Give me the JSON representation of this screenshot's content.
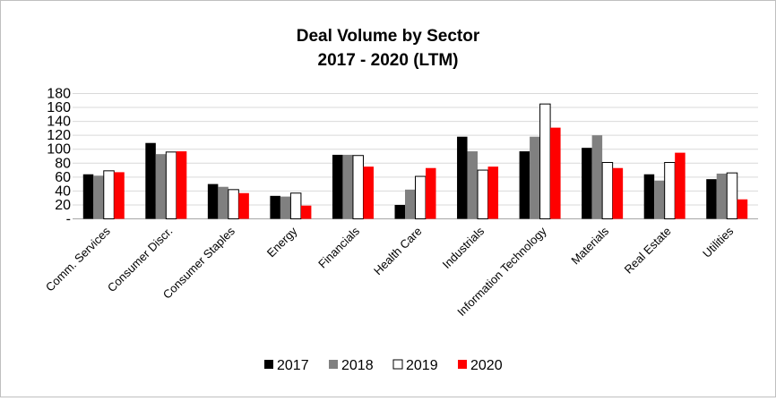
{
  "chart_data": {
    "type": "bar",
    "title": "Deal Volume by Sector",
    "subtitle": "2017 - 2020 (LTM)",
    "xlabel": "",
    "ylabel": "",
    "ylim": [
      0,
      180
    ],
    "yticks": [
      0,
      20,
      40,
      60,
      80,
      100,
      120,
      140,
      160,
      180
    ],
    "ytick_labels": [
      "-",
      "20",
      "40",
      "60",
      "80",
      "100",
      "120",
      "140",
      "160",
      "180"
    ],
    "grid": true,
    "legend_position": "bottom",
    "categories": [
      "Comm. Services",
      "Consumer Discr.",
      "Consumer Staples",
      "Energy",
      "Financials",
      "Health Care",
      "Industrials",
      "Information Technology",
      "Materials",
      "Real Estate",
      "Utilities"
    ],
    "series": [
      {
        "name": "2017",
        "color": "#000000",
        "values": [
          64,
          109,
          50,
          33,
          92,
          20,
          118,
          97,
          102,
          64,
          57
        ]
      },
      {
        "name": "2018",
        "color": "#808080",
        "values": [
          62,
          93,
          46,
          32,
          92,
          42,
          97,
          118,
          120,
          55,
          65
        ]
      },
      {
        "name": "2019",
        "color": "#ffffff",
        "values": [
          69,
          96,
          42,
          37,
          91,
          61,
          70,
          165,
          81,
          81,
          66
        ]
      },
      {
        "name": "2020",
        "color": "#ff0000",
        "values": [
          67,
          97,
          37,
          19,
          75,
          73,
          75,
          131,
          73,
          95,
          28
        ]
      }
    ]
  }
}
